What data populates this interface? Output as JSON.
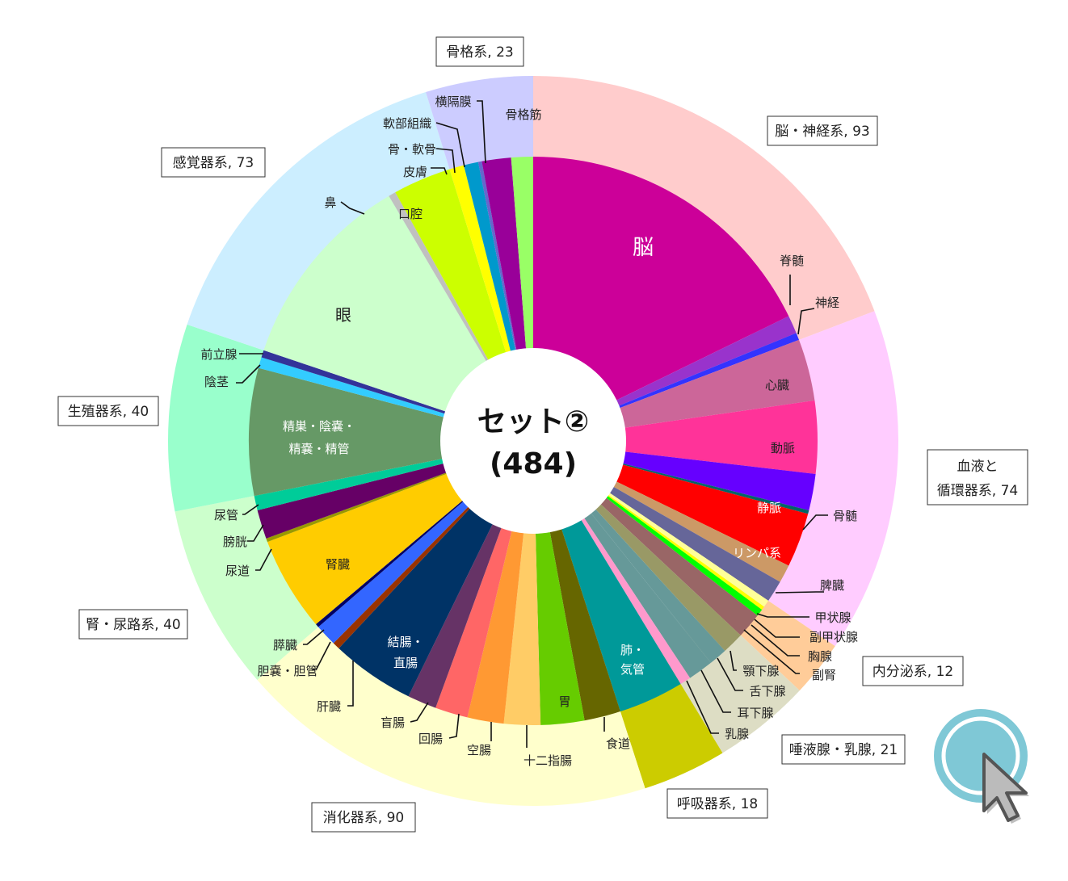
{
  "center": {
    "title": "セット②",
    "total": "(484)"
  },
  "chart_data": {
    "type": "pie",
    "subtype": "two-level donut (sunburst)",
    "total": 484,
    "categories": [
      {
        "name": "脳・神経系",
        "value": 93,
        "label": "脳・神経系, 93",
        "color": "#FFCCCC",
        "children": [
          {
            "name": "脳",
            "value": 86,
            "color": "#CC0099"
          },
          {
            "name": "脊髄",
            "value": 5,
            "color": "#9933CC"
          },
          {
            "name": "神経",
            "value": 2,
            "color": "#3333FF"
          }
        ]
      },
      {
        "name": "血液と循環器系",
        "value": 74,
        "label_lines": [
          "血液と",
          "循環器系, 74"
        ],
        "color": "#FFCCFF",
        "children": [
          {
            "name": "心臓",
            "value": 17,
            "color": "#CC6699"
          },
          {
            "name": "動脈",
            "value": 20,
            "color": "#FF3399"
          },
          {
            "name": "静脈",
            "value": 10,
            "color": "#6600FF"
          },
          {
            "name": "骨髄",
            "value": 1,
            "color": "#006666"
          },
          {
            "name": "リンパ系",
            "value": 15,
            "color": "#FF0000"
          },
          {
            "name": "脾臓",
            "value": 5,
            "color": "#CC9966"
          },
          {
            "name": "甲状腺",
            "value": 6,
            "color": "#666699"
          }
        ]
      },
      {
        "name": "内分泌系",
        "value": 12,
        "label": "内分泌系, 12",
        "color": "#FFCC99",
        "children": [
          {
            "name": "副甲状腺",
            "value": 2,
            "color": "#FFFF99"
          },
          {
            "name": "胸腺",
            "value": 1,
            "color": "#FFFF00"
          },
          {
            "name": "副腎",
            "value": 2,
            "color": "#00FF00"
          },
          {
            "name": "甲状腺(続)",
            "value": 7,
            "color": "#996666"
          }
        ]
      },
      {
        "name": "唾液腺・乳腺",
        "value": 21,
        "label": "唾液腺・乳腺, 21",
        "color": "#DDDDC4",
        "children": [
          {
            "name": "顎下腺",
            "value": 6,
            "color": "#999966"
          },
          {
            "name": "舌下腺",
            "value": 5,
            "color": "#669999"
          },
          {
            "name": "耳下腺",
            "value": 7,
            "color": "#669999"
          },
          {
            "name": "乳腺",
            "value": 3,
            "color": "#FF99CC"
          }
        ]
      },
      {
        "name": "呼吸器系",
        "value": 18,
        "label": "呼吸器系, 18",
        "color": "#CCCC00",
        "children": [
          {
            "name": "肺・気管",
            "value": 18,
            "color": "#009999"
          }
        ]
      },
      {
        "name": "消化器系",
        "value": 90,
        "label": "消化器系, 90",
        "color": "#FFFFCC",
        "children": [
          {
            "name": "食道",
            "value": 10,
            "color": "#666600"
          },
          {
            "name": "胃",
            "value": 12,
            "color": "#66CC00"
          },
          {
            "name": "十二指腸",
            "value": 10,
            "color": "#FFCC66"
          },
          {
            "name": "空腸",
            "value": 10,
            "color": "#FF9933"
          },
          {
            "name": "回腸",
            "value": 9,
            "color": "#FF6666"
          },
          {
            "name": "盲腸",
            "value": 8,
            "color": "#663366"
          },
          {
            "name": "結腸・直腸",
            "value": 23,
            "color": "#003366"
          },
          {
            "name": "肝臓",
            "value": 2,
            "color": "#993300"
          },
          {
            "name": "胆嚢・胆管",
            "value": 6,
            "color": "#3366FF"
          }
        ]
      },
      {
        "name": "腎・尿路系",
        "value": 40,
        "label": "腎・尿路系, 40",
        "color": "#CCFFCC",
        "children": [
          {
            "name": "膵臓",
            "value": 1,
            "color": "#000066"
          },
          {
            "name": "腎臓",
            "value": 26,
            "color": "#FFCC00"
          },
          {
            "name": "尿道",
            "value": 1,
            "color": "#999900"
          },
          {
            "name": "膀胱",
            "value": 8,
            "color": "#660066"
          },
          {
            "name": "尿管",
            "value": 4,
            "color": "#00CC99"
          }
        ]
      },
      {
        "name": "生殖器系",
        "value": 40,
        "label": "生殖器系, 40",
        "color": "#99FFCC",
        "children": [
          {
            "name": "精巣・陰嚢・精嚢・精管",
            "value": 35,
            "color": "#669966"
          },
          {
            "name": "陰茎",
            "value": 3,
            "color": "#33CCFF"
          },
          {
            "name": "前立腺",
            "value": 2,
            "color": "#333399"
          }
        ]
      },
      {
        "name": "感覚器系",
        "value": 73,
        "label": "感覚器系, 73",
        "color": "#CCEEFF",
        "children": [
          {
            "name": "眼",
            "value": 55,
            "color": "#CCFFCC"
          },
          {
            "name": "鼻",
            "value": 2,
            "color": "#C0C0C0"
          },
          {
            "name": "口腔",
            "value": 16,
            "color": "#CCFF00"
          }
        ]
      },
      {
        "name": "骨格系",
        "value": 23,
        "label": "骨格系, 23",
        "color": "#CCCCFF",
        "children": [
          {
            "name": "皮膚",
            "value": 4,
            "color": "#FFFF00"
          },
          {
            "name": "骨・軟骨",
            "value": 4,
            "color": "#0099CC"
          },
          {
            "name": "軟部組織",
            "value": 1,
            "color": "#6666CC"
          },
          {
            "name": "横隔膜",
            "value": 8,
            "color": "#990099"
          },
          {
            "name": "骨格筋",
            "value": 6,
            "color": "#99FF66"
          }
        ]
      }
    ]
  },
  "inner_labels": {
    "brain": "脳",
    "spine": "脊髄",
    "nerve": "神経",
    "heart": "心臓",
    "artery": "動脈",
    "vein": "静脈",
    "marrow": "骨髄",
    "lymph": "リンパ系",
    "spleen": "脾臓",
    "thyroid": "甲状腺",
    "parathyroid": "副甲状腺",
    "thymus": "胸腺",
    "adrenal": "副腎",
    "submand": "顎下腺",
    "subling": "舌下腺",
    "parotid": "耳下腺",
    "breast": "乳腺",
    "lung_1": "肺・",
    "lung_2": "気管",
    "esophagus": "食道",
    "stomach": "胃",
    "duodenum": "十二指腸",
    "jejunum": "空腸",
    "ileum": "回腸",
    "cecum": "盲腸",
    "colon_1": "結腸・",
    "colon_2": "直腸",
    "liver": "肝臓",
    "gall": "胆嚢・胆管",
    "pancreas": "膵臓",
    "kidney": "腎臓",
    "urethra": "尿道",
    "bladder": "膀胱",
    "ureter": "尿管",
    "testis_1": "精巣・陰嚢・",
    "testis_2": "精嚢・精管",
    "penis": "陰茎",
    "prostate": "前立腺",
    "eye": "眼",
    "nose": "鼻",
    "oral": "口腔",
    "skin": "皮膚",
    "bone": "骨・軟骨",
    "soft": "軟部組織",
    "diaphragm": "横隔膜",
    "muscle": "骨格筋"
  },
  "colors": {
    "cursor_ring": "#7FC8D6",
    "cursor_arrow": "#BBBBBB"
  }
}
